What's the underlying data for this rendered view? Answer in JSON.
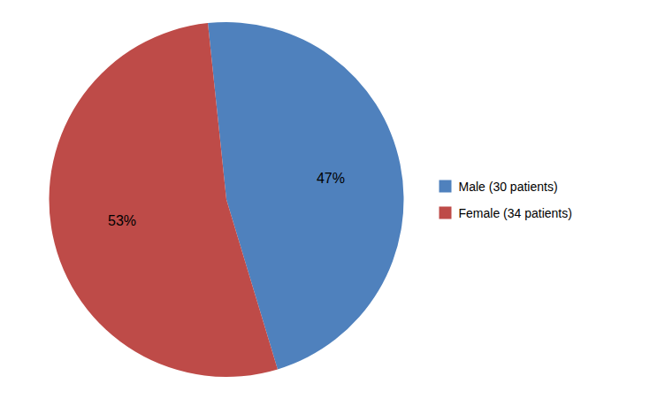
{
  "chart_data": {
    "type": "pie",
    "categories": [
      "Male (30 patients)",
      "Female (34 patients)"
    ],
    "values": [
      47,
      53
    ],
    "value_labels": [
      "47%",
      "53%"
    ],
    "colors": [
      "#4f81bd",
      "#be4b48"
    ],
    "data_labels": true,
    "legend": "right"
  }
}
